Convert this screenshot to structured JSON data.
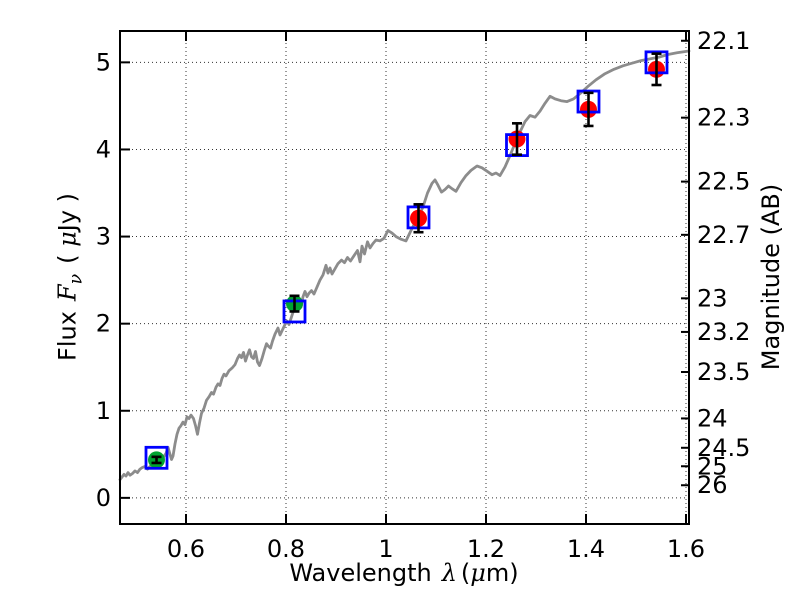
{
  "figure": {
    "background": "#ffffff",
    "xlabel": {
      "word": "Wavelength",
      "symbol": "λ",
      "unit_open": "(",
      "unit_mu": "μ",
      "unit_close": "m)"
    },
    "ylabel_left": {
      "word": "Flux",
      "symbol": "F",
      "subscript": "ν",
      "unit_open": "( ",
      "unit_mu": "μ",
      "unit_close": "Jy )"
    },
    "ylabel_right": "Magnitude (AB)"
  },
  "chart_data": {
    "type": "line",
    "title": "",
    "xlabel": "Wavelength λ (μm)",
    "ylabel": "Flux Fν (μJy)",
    "ylabel_right": "Magnitude (AB)",
    "xlim": [
      0.468,
      1.606
    ],
    "ylim": [
      -0.3,
      5.36
    ],
    "grid": {
      "on": true,
      "style": "dotted",
      "color": "#333333"
    },
    "axes_color": "#000000",
    "x_ticks": [
      {
        "value": 0.6,
        "label": "0.6"
      },
      {
        "value": 0.8,
        "label": "0.8"
      },
      {
        "value": 1.0,
        "label": "1"
      },
      {
        "value": 1.2,
        "label": "1.2"
      },
      {
        "value": 1.4,
        "label": "1.4"
      },
      {
        "value": 1.6,
        "label": "1.6"
      }
    ],
    "y_ticks_flux": [
      {
        "value": 0,
        "label": "0"
      },
      {
        "value": 1,
        "label": "1"
      },
      {
        "value": 2,
        "label": "2"
      },
      {
        "value": 3,
        "label": "3"
      },
      {
        "value": 4,
        "label": "4"
      },
      {
        "value": 5,
        "label": "5"
      }
    ],
    "y_ticks_magnitude": [
      {
        "flux": 5.248,
        "label": "22.1"
      },
      {
        "flux": 4.365,
        "label": "22.3"
      },
      {
        "flux": 3.631,
        "label": "22.5"
      },
      {
        "flux": 3.02,
        "label": "22.7"
      },
      {
        "flux": 2.291,
        "label": "23"
      },
      {
        "flux": 1.905,
        "label": "23.2"
      },
      {
        "flux": 1.445,
        "label": "23.5"
      },
      {
        "flux": 0.912,
        "label": "24"
      },
      {
        "flux": 0.575,
        "label": "24.5"
      },
      {
        "flux": 0.363,
        "label": "25"
      },
      {
        "flux": 0.145,
        "label": "26"
      }
    ],
    "model_spectrum": {
      "name": "model spectrum",
      "color": "#8c8c8c",
      "line_width": 2.8,
      "points": [
        [
          0.468,
          0.21
        ],
        [
          0.472,
          0.24
        ],
        [
          0.476,
          0.27
        ],
        [
          0.48,
          0.25
        ],
        [
          0.484,
          0.29
        ],
        [
          0.488,
          0.26
        ],
        [
          0.493,
          0.28
        ],
        [
          0.498,
          0.31
        ],
        [
          0.503,
          0.29
        ],
        [
          0.508,
          0.33
        ],
        [
          0.513,
          0.35
        ],
        [
          0.518,
          0.36
        ],
        [
          0.523,
          0.33
        ],
        [
          0.528,
          0.36
        ],
        [
          0.533,
          0.39
        ],
        [
          0.538,
          0.41
        ],
        [
          0.543,
          0.43
        ],
        [
          0.549,
          0.45
        ],
        [
          0.555,
          0.47
        ],
        [
          0.56,
          0.51
        ],
        [
          0.564,
          0.58
        ],
        [
          0.568,
          0.5
        ],
        [
          0.571,
          0.44
        ],
        [
          0.574,
          0.48
        ],
        [
          0.578,
          0.62
        ],
        [
          0.582,
          0.73
        ],
        [
          0.586,
          0.8
        ],
        [
          0.59,
          0.83
        ],
        [
          0.594,
          0.87
        ],
        [
          0.598,
          0.84
        ],
        [
          0.602,
          0.93
        ],
        [
          0.606,
          0.91
        ],
        [
          0.61,
          0.95
        ],
        [
          0.615,
          0.91
        ],
        [
          0.619,
          0.83
        ],
        [
          0.623,
          0.73
        ],
        [
          0.627,
          0.86
        ],
        [
          0.631,
          0.97
        ],
        [
          0.636,
          1.03
        ],
        [
          0.641,
          1.12
        ],
        [
          0.646,
          1.16
        ],
        [
          0.651,
          1.21
        ],
        [
          0.655,
          1.19
        ],
        [
          0.66,
          1.27
        ],
        [
          0.664,
          1.31
        ],
        [
          0.668,
          1.29
        ],
        [
          0.672,
          1.37
        ],
        [
          0.676,
          1.42
        ],
        [
          0.68,
          1.4
        ],
        [
          0.686,
          1.46
        ],
        [
          0.692,
          1.49
        ],
        [
          0.698,
          1.53
        ],
        [
          0.703,
          1.6
        ],
        [
          0.707,
          1.64
        ],
        [
          0.711,
          1.61
        ],
        [
          0.715,
          1.67
        ],
        [
          0.719,
          1.57
        ],
        [
          0.723,
          1.64
        ],
        [
          0.727,
          1.7
        ],
        [
          0.731,
          1.62
        ],
        [
          0.735,
          1.6
        ],
        [
          0.739,
          1.68
        ],
        [
          0.743,
          1.56
        ],
        [
          0.747,
          1.52
        ],
        [
          0.752,
          1.6
        ],
        [
          0.757,
          1.7
        ],
        [
          0.761,
          1.77
        ],
        [
          0.765,
          1.74
        ],
        [
          0.769,
          1.72
        ],
        [
          0.773,
          1.8
        ],
        [
          0.778,
          1.88
        ],
        [
          0.784,
          1.95
        ],
        [
          0.788,
          1.87
        ],
        [
          0.793,
          1.93
        ],
        [
          0.798,
          1.99
        ],
        [
          0.802,
          2.03
        ],
        [
          0.806,
          1.99
        ],
        [
          0.81,
          2.06
        ],
        [
          0.814,
          2.13
        ],
        [
          0.818,
          2.2
        ],
        [
          0.822,
          2.24
        ],
        [
          0.826,
          2.28
        ],
        [
          0.83,
          2.19
        ],
        [
          0.834,
          2.31
        ],
        [
          0.838,
          2.37
        ],
        [
          0.842,
          2.31
        ],
        [
          0.846,
          2.35
        ],
        [
          0.851,
          2.38
        ],
        [
          0.856,
          2.34
        ],
        [
          0.862,
          2.42
        ],
        [
          0.868,
          2.5
        ],
        [
          0.874,
          2.56
        ],
        [
          0.88,
          2.67
        ],
        [
          0.884,
          2.58
        ],
        [
          0.888,
          2.64
        ],
        [
          0.892,
          2.57
        ],
        [
          0.898,
          2.63
        ],
        [
          0.904,
          2.69
        ],
        [
          0.911,
          2.73
        ],
        [
          0.917,
          2.7
        ],
        [
          0.923,
          2.76
        ],
        [
          0.929,
          2.72
        ],
        [
          0.936,
          2.78
        ],
        [
          0.943,
          2.84
        ],
        [
          0.948,
          2.71
        ],
        [
          0.952,
          2.89
        ],
        [
          0.957,
          2.8
        ],
        [
          0.963,
          2.94
        ],
        [
          0.968,
          2.87
        ],
        [
          0.974,
          2.92
        ],
        [
          0.98,
          2.96
        ],
        [
          0.988,
          2.95
        ],
        [
          0.996,
          2.98
        ],
        [
          1.004,
          3.07
        ],
        [
          1.012,
          3.04
        ],
        [
          1.02,
          3.0
        ],
        [
          1.03,
          2.97
        ],
        [
          1.04,
          2.95
        ],
        [
          1.05,
          3.07
        ],
        [
          1.058,
          3.16
        ],
        [
          1.066,
          3.24
        ],
        [
          1.074,
          3.34
        ],
        [
          1.083,
          3.5
        ],
        [
          1.092,
          3.61
        ],
        [
          1.098,
          3.65
        ],
        [
          1.104,
          3.59
        ],
        [
          1.111,
          3.51
        ],
        [
          1.118,
          3.54
        ],
        [
          1.125,
          3.58
        ],
        [
          1.132,
          3.55
        ],
        [
          1.14,
          3.52
        ],
        [
          1.15,
          3.62
        ],
        [
          1.16,
          3.7
        ],
        [
          1.17,
          3.76
        ],
        [
          1.182,
          3.81
        ],
        [
          1.192,
          3.79
        ],
        [
          1.202,
          3.75
        ],
        [
          1.212,
          3.71
        ],
        [
          1.22,
          3.73
        ],
        [
          1.228,
          3.7
        ],
        [
          1.238,
          3.8
        ],
        [
          1.248,
          3.93
        ],
        [
          1.258,
          4.07
        ],
        [
          1.268,
          4.2
        ],
        [
          1.278,
          4.32
        ],
        [
          1.288,
          4.39
        ],
        [
          1.298,
          4.37
        ],
        [
          1.308,
          4.44
        ],
        [
          1.318,
          4.53
        ],
        [
          1.328,
          4.61
        ],
        [
          1.338,
          4.58
        ],
        [
          1.35,
          4.56
        ],
        [
          1.362,
          4.55
        ],
        [
          1.375,
          4.58
        ],
        [
          1.39,
          4.65
        ],
        [
          1.405,
          4.73
        ],
        [
          1.42,
          4.8
        ],
        [
          1.438,
          4.87
        ],
        [
          1.456,
          4.92
        ],
        [
          1.474,
          4.96
        ],
        [
          1.492,
          4.99
        ],
        [
          1.51,
          5.02
        ],
        [
          1.528,
          5.04
        ],
        [
          1.546,
          5.06
        ],
        [
          1.564,
          5.09
        ],
        [
          1.582,
          5.11
        ],
        [
          1.606,
          5.13
        ]
      ]
    },
    "photometry": {
      "observed_marker": "filled circle",
      "model_marker": "open blue square",
      "errorbar_color": "#000000",
      "model_square_color": "#0000ff",
      "points": [
        {
          "wavelength": 0.541,
          "flux": 0.436,
          "flux_err": 0.035,
          "color": "#00a230",
          "model_flux": 0.46
        },
        {
          "wavelength": 0.817,
          "flux": 2.23,
          "flux_err": 0.09,
          "color": "#00a230",
          "model_flux": 2.14
        },
        {
          "wavelength": 1.065,
          "flux": 3.21,
          "flux_err": 0.16,
          "color": "#ff0000",
          "model_flux": 3.22
        },
        {
          "wavelength": 1.262,
          "flux": 4.12,
          "flux_err": 0.18,
          "color": "#ff0000",
          "model_flux": 4.05
        },
        {
          "wavelength": 1.405,
          "flux": 4.46,
          "flux_err": 0.19,
          "color": "#ff0000",
          "model_flux": 4.55
        },
        {
          "wavelength": 1.541,
          "flux": 4.92,
          "flux_err": 0.18,
          "color": "#ff0000",
          "model_flux": 5.0
        }
      ]
    }
  }
}
